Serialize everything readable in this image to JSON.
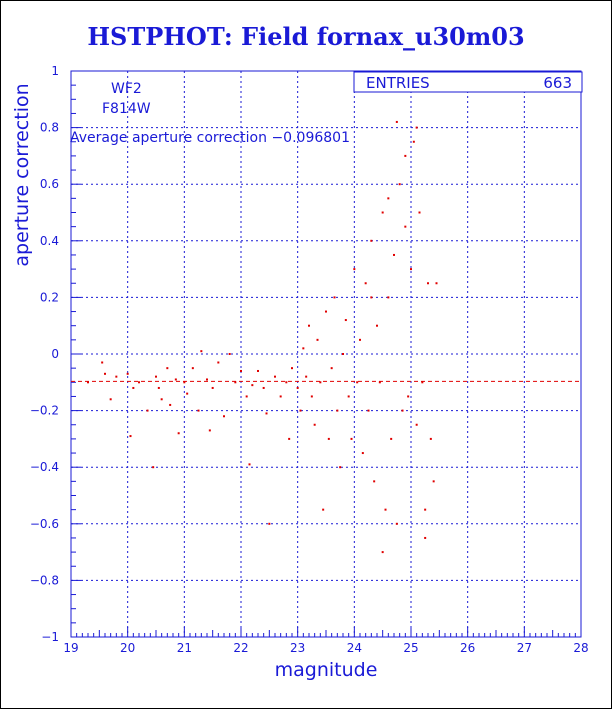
{
  "title": "HSTPHOT: Field fornax_u30m03",
  "colors": {
    "axis": "#1a1ad6",
    "points": "#e00000",
    "background": "#ffffff"
  },
  "chart_data": {
    "type": "scatter",
    "title": "HSTPHOT: Field fornax_u30m03",
    "xlabel": "magnitude",
    "ylabel": "aperture correction",
    "xlim": [
      19,
      28
    ],
    "ylim": [
      -1,
      1
    ],
    "xticks": [
      "19",
      "20",
      "21",
      "22",
      "23",
      "24",
      "25",
      "26",
      "27",
      "28"
    ],
    "yticks": [
      "−1",
      "−0.8",
      "−0.6",
      "−0.4",
      "−0.2",
      "0",
      "0.2",
      "0.4",
      "0.6",
      "0.8",
      "1"
    ],
    "grid": true,
    "stats": {
      "label": "ENTRIES",
      "value": "663"
    },
    "annotations": [
      "WF2",
      "F814W",
      "Average aperture correction −0.096801"
    ],
    "average_line": -0.096801,
    "series": [
      {
        "x": [
          19.3,
          19.55,
          19.6,
          19.7,
          19.8,
          20.0,
          20.05,
          20.1,
          20.2,
          20.35,
          20.45,
          20.5,
          20.55,
          20.6,
          20.7,
          20.75,
          20.85,
          20.9,
          21.0,
          21.05,
          21.15,
          21.25,
          21.3,
          21.4,
          21.45,
          21.5,
          21.6,
          21.7,
          21.8,
          21.9,
          22.0,
          22.1,
          22.15,
          22.2,
          22.3,
          22.4,
          22.45,
          22.5,
          22.6,
          22.7,
          22.8,
          22.85,
          22.9,
          23.0,
          23.05,
          23.1,
          23.15,
          23.2,
          23.25,
          23.3,
          23.35,
          23.4,
          23.45,
          23.5,
          23.55,
          23.6,
          23.65,
          23.7,
          23.75,
          23.8,
          23.85,
          23.9,
          23.95,
          24.0,
          24.05,
          24.1,
          24.15,
          24.2,
          24.25,
          24.3,
          24.35,
          24.4,
          24.45,
          24.5,
          24.55,
          24.6,
          24.65,
          24.7,
          24.75,
          24.8,
          24.85,
          24.9,
          24.95,
          25.0,
          25.05,
          25.1,
          25.15,
          25.2,
          25.25,
          25.3,
          25.35,
          25.4,
          25.45,
          24.75,
          24.9,
          25.1,
          25.25,
          24.5,
          24.3,
          24.6
        ],
        "y": [
          -0.1,
          -0.03,
          -0.07,
          -0.16,
          -0.08,
          -0.07,
          -0.29,
          -0.12,
          -0.1,
          -0.2,
          -0.4,
          -0.08,
          -0.12,
          -0.16,
          -0.05,
          -0.18,
          -0.09,
          -0.28,
          -0.1,
          -0.14,
          -0.05,
          -0.2,
          0.01,
          -0.09,
          -0.27,
          -0.12,
          -0.03,
          -0.22,
          0.0,
          -0.1,
          -0.06,
          -0.15,
          -0.39,
          -0.11,
          -0.06,
          -0.12,
          -0.21,
          -0.6,
          -0.08,
          -0.15,
          -0.1,
          -0.3,
          -0.05,
          -0.12,
          -0.2,
          0.02,
          -0.08,
          0.1,
          -0.15,
          -0.25,
          0.05,
          -0.1,
          -0.55,
          0.15,
          -0.3,
          -0.05,
          0.2,
          -0.2,
          -0.4,
          0.0,
          0.12,
          -0.15,
          -0.3,
          0.3,
          -0.1,
          0.05,
          -0.35,
          0.25,
          -0.2,
          0.4,
          -0.45,
          0.1,
          -0.1,
          0.5,
          -0.55,
          0.2,
          -0.3,
          0.35,
          -0.6,
          0.6,
          -0.2,
          0.45,
          -0.15,
          0.3,
          0.75,
          -0.25,
          0.5,
          -0.1,
          -0.65,
          0.25,
          -0.3,
          -0.45,
          0.25,
          0.82,
          0.7,
          0.8,
          -0.55,
          -0.7,
          0.2,
          0.55
        ]
      }
    ]
  }
}
